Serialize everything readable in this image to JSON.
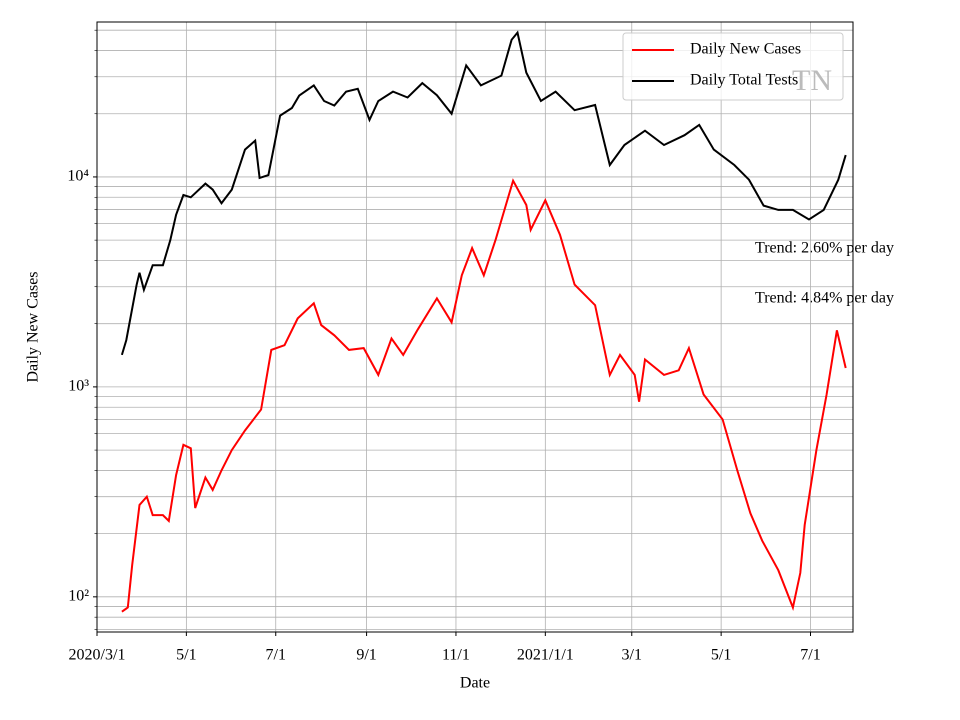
{
  "chart_data": {
    "type": "line",
    "xlabel": "Date",
    "ylabel": "Daily New Cases",
    "log_y": true,
    "grid": true,
    "legend": "upper right",
    "xlim": [
      "2020-03-01",
      "2021-07-30"
    ],
    "xticks": [
      {
        "value": "2020-03-01",
        "label": "2020/3/1"
      },
      {
        "value": "2020-05-01",
        "label": "5/1"
      },
      {
        "value": "2020-07-01",
        "label": "7/1"
      },
      {
        "value": "2020-09-01",
        "label": "9/1"
      },
      {
        "value": "2020-11-01",
        "label": "11/1"
      },
      {
        "value": "2021-01-01",
        "label": "2021/1/1"
      },
      {
        "value": "2021-03-01",
        "label": "3/1"
      },
      {
        "value": "2021-05-01",
        "label": "5/1"
      },
      {
        "value": "2021-07-01",
        "label": "7/1"
      }
    ],
    "ylim": [
      68,
      54700
    ],
    "yticks": [
      {
        "value": 100,
        "label": "10²"
      },
      {
        "value": 1000,
        "label": "10³"
      },
      {
        "value": 10000,
        "label": "10⁴"
      }
    ],
    "yminorticks": [
      70,
      80,
      90,
      200,
      300,
      400,
      500,
      600,
      700,
      800,
      900,
      2000,
      3000,
      4000,
      5000,
      6000,
      7000,
      8000,
      9000,
      20000,
      30000,
      40000,
      50000
    ],
    "series": [
      {
        "name": "Daily New Cases",
        "color": "#ff0000",
        "x": [
          "2020-03-18",
          "2020-03-22",
          "2020-03-25",
          "2020-03-30",
          "2020-04-04",
          "2020-04-08",
          "2020-04-15",
          "2020-04-19",
          "2020-04-24",
          "2020-04-29",
          "2020-05-04",
          "2020-05-07",
          "2020-05-14",
          "2020-05-19",
          "2020-05-25",
          "2020-06-01",
          "2020-06-10",
          "2020-06-21",
          "2020-06-28",
          "2020-07-07",
          "2020-07-16",
          "2020-07-27",
          "2020-08-01",
          "2020-08-10",
          "2020-08-20",
          "2020-08-30",
          "2020-09-09",
          "2020-09-18",
          "2020-09-26",
          "2020-10-06",
          "2020-10-19",
          "2020-10-29",
          "2020-11-05",
          "2020-11-12",
          "2020-11-20",
          "2020-11-28",
          "2020-12-10",
          "2020-12-19",
          "2020-12-22",
          "2021-01-01",
          "2021-01-11",
          "2021-01-21",
          "2021-02-04",
          "2021-02-14",
          "2021-02-21",
          "2021-03-03",
          "2021-03-06",
          "2021-03-10",
          "2021-03-23",
          "2021-04-02",
          "2021-04-09",
          "2021-04-19",
          "2021-05-02",
          "2021-05-12",
          "2021-05-21",
          "2021-05-29",
          "2021-06-09",
          "2021-06-19",
          "2021-06-24",
          "2021-06-27",
          "2021-07-05",
          "2021-07-12",
          "2021-07-19",
          "2021-07-25"
        ],
        "values": [
          85,
          89,
          142,
          274,
          300,
          245,
          245,
          230,
          380,
          530,
          510,
          265,
          370,
          323,
          400,
          500,
          620,
          780,
          1500,
          1580,
          2120,
          2500,
          1970,
          1760,
          1500,
          1530,
          1140,
          1700,
          1420,
          1880,
          2640,
          2030,
          3400,
          4580,
          3400,
          5000,
          9600,
          7350,
          5600,
          7740,
          5300,
          3070,
          2450,
          1140,
          1420,
          1140,
          850,
          1350,
          1140,
          1200,
          1530,
          920,
          700,
          400,
          250,
          185,
          134,
          89,
          130,
          220,
          500,
          920,
          1860,
          1230
        ]
      },
      {
        "name": "Daily Total Tests",
        "color": "#000000",
        "x": [
          "2020-03-18",
          "2020-03-21",
          "2020-03-28",
          "2020-03-30",
          "2020-04-02",
          "2020-04-08",
          "2020-04-15",
          "2020-04-20",
          "2020-04-24",
          "2020-04-29",
          "2020-05-04",
          "2020-05-14",
          "2020-05-19",
          "2020-05-25",
          "2020-06-01",
          "2020-06-10",
          "2020-06-17",
          "2020-06-20",
          "2020-06-26",
          "2020-07-04",
          "2020-07-12",
          "2020-07-17",
          "2020-07-27",
          "2020-08-03",
          "2020-08-10",
          "2020-08-18",
          "2020-08-26",
          "2020-09-03",
          "2020-09-09",
          "2020-09-19",
          "2020-09-29",
          "2020-10-09",
          "2020-10-19",
          "2020-10-29",
          "2020-11-08",
          "2020-11-18",
          "2020-12-02",
          "2020-12-09",
          "2020-12-13",
          "2020-12-19",
          "2020-12-29",
          "2021-01-08",
          "2021-01-21",
          "2021-02-04",
          "2021-02-14",
          "2021-02-24",
          "2021-03-10",
          "2021-03-23",
          "2021-04-06",
          "2021-04-16",
          "2021-04-26",
          "2021-05-10",
          "2021-05-20",
          "2021-05-30",
          "2021-06-09",
          "2021-06-19",
          "2021-06-30",
          "2021-07-10",
          "2021-07-20",
          "2021-07-25"
        ],
        "values": [
          1420,
          1670,
          3060,
          3500,
          2900,
          3800,
          3800,
          5000,
          6600,
          8200,
          8000,
          9300,
          8700,
          7500,
          8700,
          13500,
          14900,
          9900,
          10200,
          19600,
          21300,
          24400,
          27300,
          23000,
          21900,
          25500,
          26300,
          18700,
          23000,
          25500,
          23900,
          28000,
          24500,
          20000,
          34000,
          27300,
          30400,
          45000,
          48700,
          31400,
          23000,
          25500,
          20800,
          22000,
          11400,
          14200,
          16600,
          14200,
          15800,
          17700,
          13500,
          11400,
          9700,
          7300,
          6970,
          6970,
          6270,
          6970,
          9700,
          12700
        ]
      }
    ],
    "annotations": [
      "Trend: 2.60% per day",
      "Trend: 4.84% per day"
    ],
    "watermark": "TN"
  }
}
